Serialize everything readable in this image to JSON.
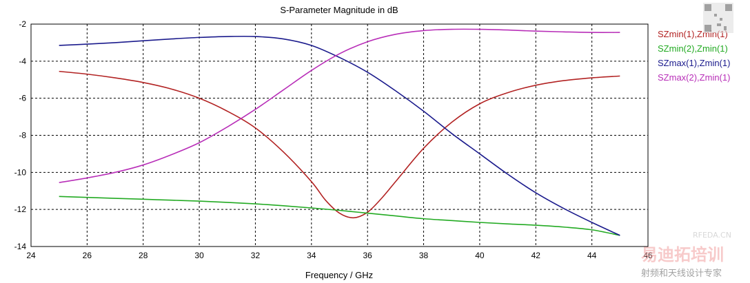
{
  "chart_data": {
    "type": "line",
    "title": "S-Parameter Magnitude in dB",
    "xlabel": "Frequency / GHz",
    "ylabel": "",
    "xlim": [
      24,
      46
    ],
    "ylim": [
      -14,
      -2
    ],
    "xticks": [
      24,
      26,
      28,
      30,
      32,
      34,
      36,
      38,
      40,
      42,
      44,
      46
    ],
    "yticks": [
      -2,
      -4,
      -6,
      -8,
      -10,
      -12,
      -14
    ],
    "grid": true,
    "legend_position": "right",
    "series": [
      {
        "name": "SZmin(1),Zmin(1)",
        "color": "#b22222",
        "x": [
          25,
          26,
          27,
          28,
          29,
          30,
          31,
          32,
          33,
          34,
          34.5,
          35,
          35.5,
          36,
          36.5,
          37,
          38,
          39,
          40,
          41,
          42,
          43,
          44,
          45
        ],
        "y": [
          -4.55,
          -4.7,
          -4.9,
          -5.15,
          -5.5,
          -6.0,
          -6.7,
          -7.6,
          -8.9,
          -10.5,
          -11.5,
          -12.2,
          -12.45,
          -12.15,
          -11.4,
          -10.5,
          -8.7,
          -7.3,
          -6.3,
          -5.7,
          -5.3,
          -5.05,
          -4.9,
          -4.8
        ]
      },
      {
        "name": "SZmin(2),Zmin(1)",
        "color": "#22aa22",
        "x": [
          25,
          26,
          27,
          28,
          29,
          30,
          31,
          32,
          33,
          34,
          35,
          36,
          37,
          38,
          39,
          40,
          41,
          42,
          43,
          44,
          45
        ],
        "y": [
          -11.3,
          -11.35,
          -11.4,
          -11.45,
          -11.5,
          -11.55,
          -11.62,
          -11.7,
          -11.8,
          -11.92,
          -12.05,
          -12.2,
          -12.35,
          -12.5,
          -12.6,
          -12.7,
          -12.78,
          -12.85,
          -12.95,
          -13.1,
          -13.4
        ]
      },
      {
        "name": "SZmax(1),Zmin(1)",
        "color": "#1a1a8c",
        "x": [
          25,
          26,
          27,
          28,
          29,
          30,
          31,
          32,
          33,
          34,
          35,
          36,
          37,
          38,
          39,
          40,
          41,
          42,
          43,
          44,
          45
        ],
        "y": [
          -3.15,
          -3.08,
          -3.0,
          -2.9,
          -2.8,
          -2.72,
          -2.67,
          -2.67,
          -2.8,
          -3.15,
          -3.8,
          -4.6,
          -5.6,
          -6.7,
          -7.9,
          -9.0,
          -10.1,
          -11.1,
          -11.95,
          -12.7,
          -13.4
        ]
      },
      {
        "name": "SZmax(2),Zmin(1)",
        "color": "#b82eb8",
        "x": [
          25,
          26,
          27,
          28,
          29,
          30,
          31,
          32,
          33,
          34,
          35,
          36,
          37,
          38,
          39,
          40,
          41,
          42,
          43,
          44,
          45
        ],
        "y": [
          -10.55,
          -10.3,
          -10.0,
          -9.6,
          -9.05,
          -8.4,
          -7.55,
          -6.6,
          -5.55,
          -4.5,
          -3.6,
          -2.95,
          -2.55,
          -2.35,
          -2.28,
          -2.28,
          -2.32,
          -2.38,
          -2.42,
          -2.45,
          -2.45
        ]
      }
    ]
  },
  "watermark": {
    "site": "RFEDA.CN",
    "brand": "易迪拓培训",
    "tagline": "射频和天线设计专家"
  }
}
